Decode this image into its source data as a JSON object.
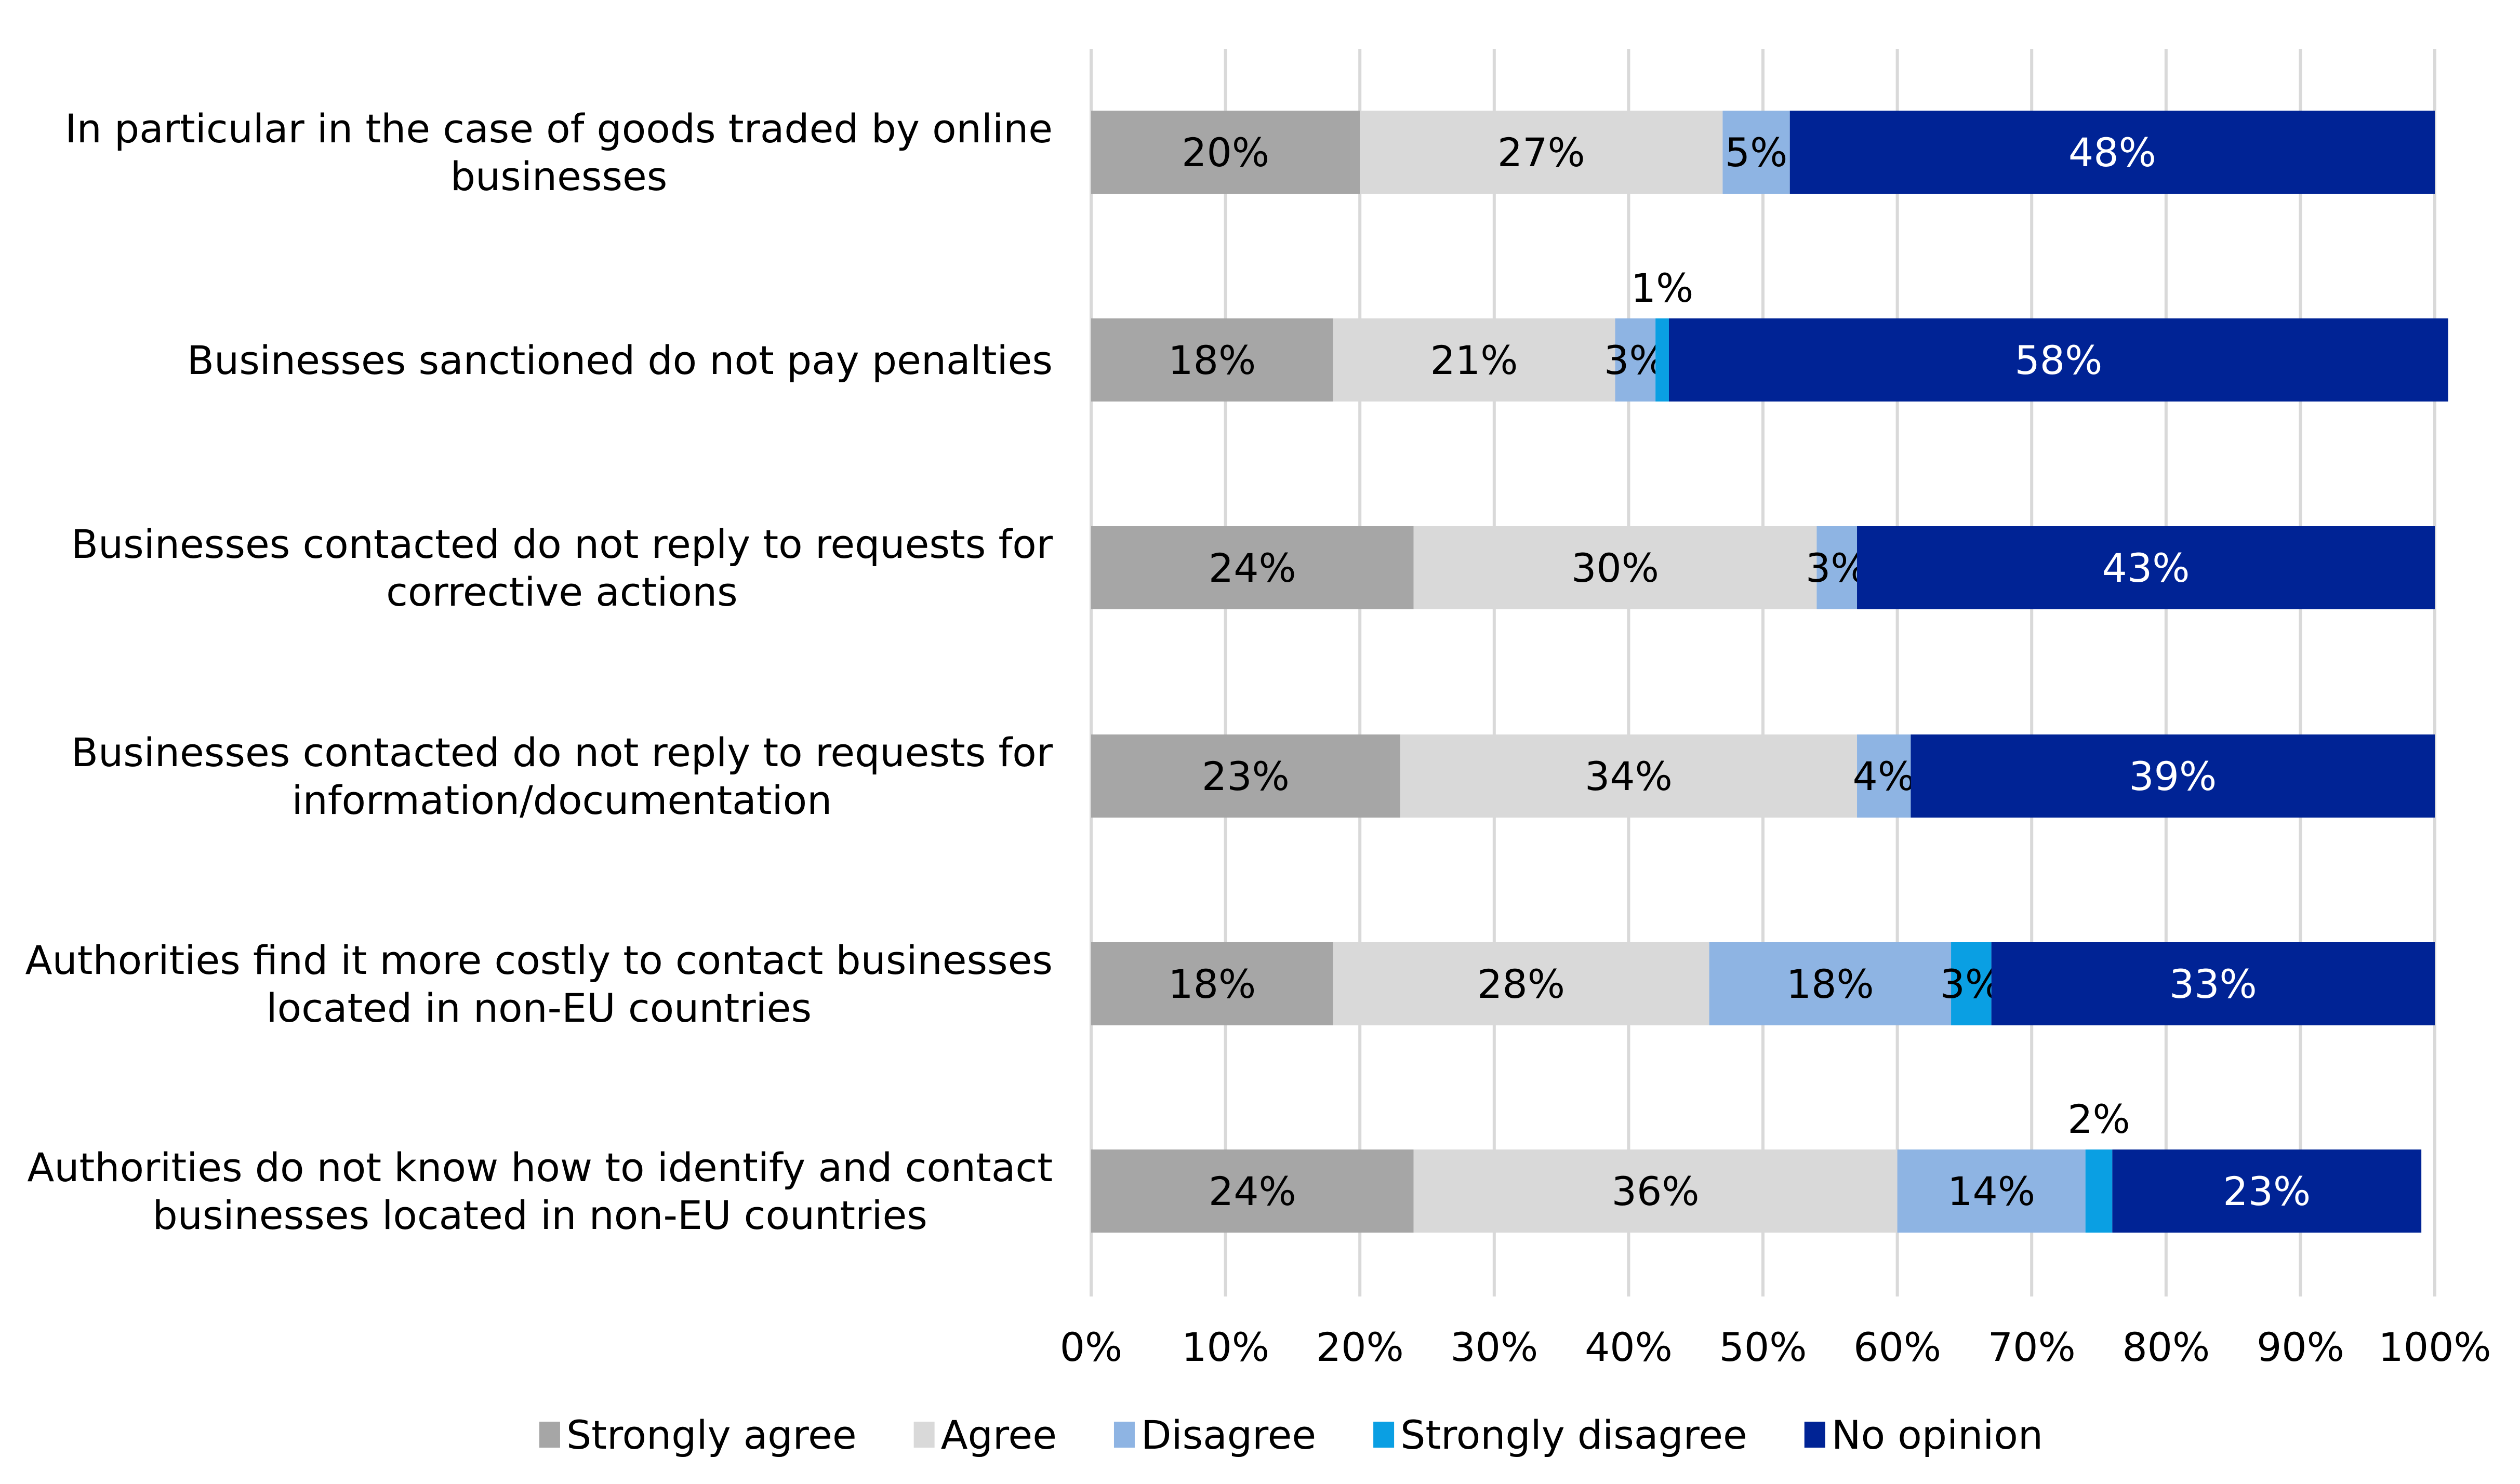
{
  "chart_data": {
    "type": "bar",
    "orientation": "horizontal",
    "stacked": "percent",
    "title": "",
    "xlabel": "",
    "ylabel": "",
    "xlim": [
      0,
      100
    ],
    "grid": true,
    "legend_position": "bottom",
    "categories": [
      [
        "In particular in the case of goods traded by online",
        "businesses"
      ],
      [
        "Businesses sanctioned do not pay penalties"
      ],
      [
        "Businesses contacted do not reply to requests for",
        "corrective actions"
      ],
      [
        "Businesses contacted do not reply to requests for",
        "information/documentation"
      ],
      [
        "Authorities find it more costly to contact businesses",
        "located in non-EU countries"
      ],
      [
        "Authorities do not know how to identify and contact",
        "businesses located in non-EU countries"
      ]
    ],
    "x_ticks": [
      "0%",
      "10%",
      "20%",
      "30%",
      "40%",
      "50%",
      "60%",
      "70%",
      "80%",
      "90%",
      "100%"
    ],
    "series": [
      {
        "name": "Strongly agree",
        "color": "#a6a6a6",
        "label_color": "#000000",
        "values": [
          20,
          18,
          24,
          23,
          18,
          24
        ]
      },
      {
        "name": "Agree",
        "color": "#d9d9d9",
        "label_color": "#000000",
        "values": [
          27,
          21,
          30,
          34,
          28,
          36
        ]
      },
      {
        "name": "Disagree",
        "color": "#8eb4e3",
        "label_color": "#000000",
        "values": [
          5,
          3,
          3,
          4,
          18,
          14
        ]
      },
      {
        "name": "Strongly disagree",
        "color": "#0a9fe3",
        "label_color": "#000000",
        "values": [
          0,
          1,
          0,
          0,
          3,
          2
        ]
      },
      {
        "name": "No opinion",
        "color": "#002395",
        "label_color": "#ffffff",
        "values": [
          48,
          58,
          43,
          39,
          33,
          23
        ]
      }
    ],
    "data_labels": [
      [
        "20%",
        "27%",
        "5%",
        "",
        "48%"
      ],
      [
        "18%",
        "21%",
        "3%",
        "1%",
        "58%"
      ],
      [
        "24%",
        "30%",
        "3%",
        "",
        "43%"
      ],
      [
        "23%",
        "34%",
        "4%",
        "",
        "39%"
      ],
      [
        "18%",
        "28%",
        "18%",
        "3%",
        "33%"
      ],
      [
        "24%",
        "36%",
        "14%",
        "2%",
        "23%"
      ]
    ],
    "outside_labels": [
      [
        1,
        3
      ],
      [
        5,
        3
      ]
    ]
  }
}
